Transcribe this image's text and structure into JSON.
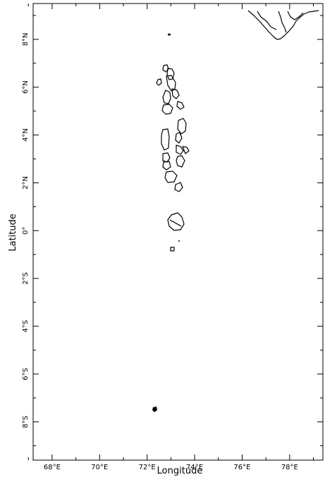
{
  "map": {
    "x_axis": {
      "title": "Longitude",
      "ticks": [
        {
          "value": 68,
          "label": "68°E"
        },
        {
          "value": 70,
          "label": "70°E"
        },
        {
          "value": 72,
          "label": "72°E"
        },
        {
          "value": 74,
          "label": "74°E"
        },
        {
          "value": 76,
          "label": "76°E"
        },
        {
          "value": 78,
          "label": "78°E"
        }
      ],
      "minor_ticks": [
        67,
        69,
        71,
        73,
        75,
        77,
        79
      ]
    },
    "y_axis": {
      "title": "Latitude",
      "ticks": [
        {
          "value": 8,
          "label": "8°N"
        },
        {
          "value": 6,
          "label": "6°N"
        },
        {
          "value": 4,
          "label": "4°N"
        },
        {
          "value": 2,
          "label": "2°N"
        },
        {
          "value": 0,
          "label": "0°"
        },
        {
          "value": -2,
          "label": "2°S"
        },
        {
          "value": -4,
          "label": "4°S"
        },
        {
          "value": -6,
          "label": "6°S"
        },
        {
          "value": -8,
          "label": "8°S"
        }
      ],
      "minor_ticks": [
        9,
        7,
        5,
        3,
        1,
        -1,
        -3,
        -5,
        -7,
        -9
      ]
    },
    "extent": {
      "lon": [
        67.2,
        79.4
      ],
      "lat": [
        -9.6,
        9.5
      ]
    },
    "features": [
      {
        "name": "India southern tip",
        "type": "coastline"
      },
      {
        "name": "Maldives atolls",
        "type": "island-chain"
      },
      {
        "name": "Diego Garcia",
        "type": "island"
      }
    ]
  }
}
